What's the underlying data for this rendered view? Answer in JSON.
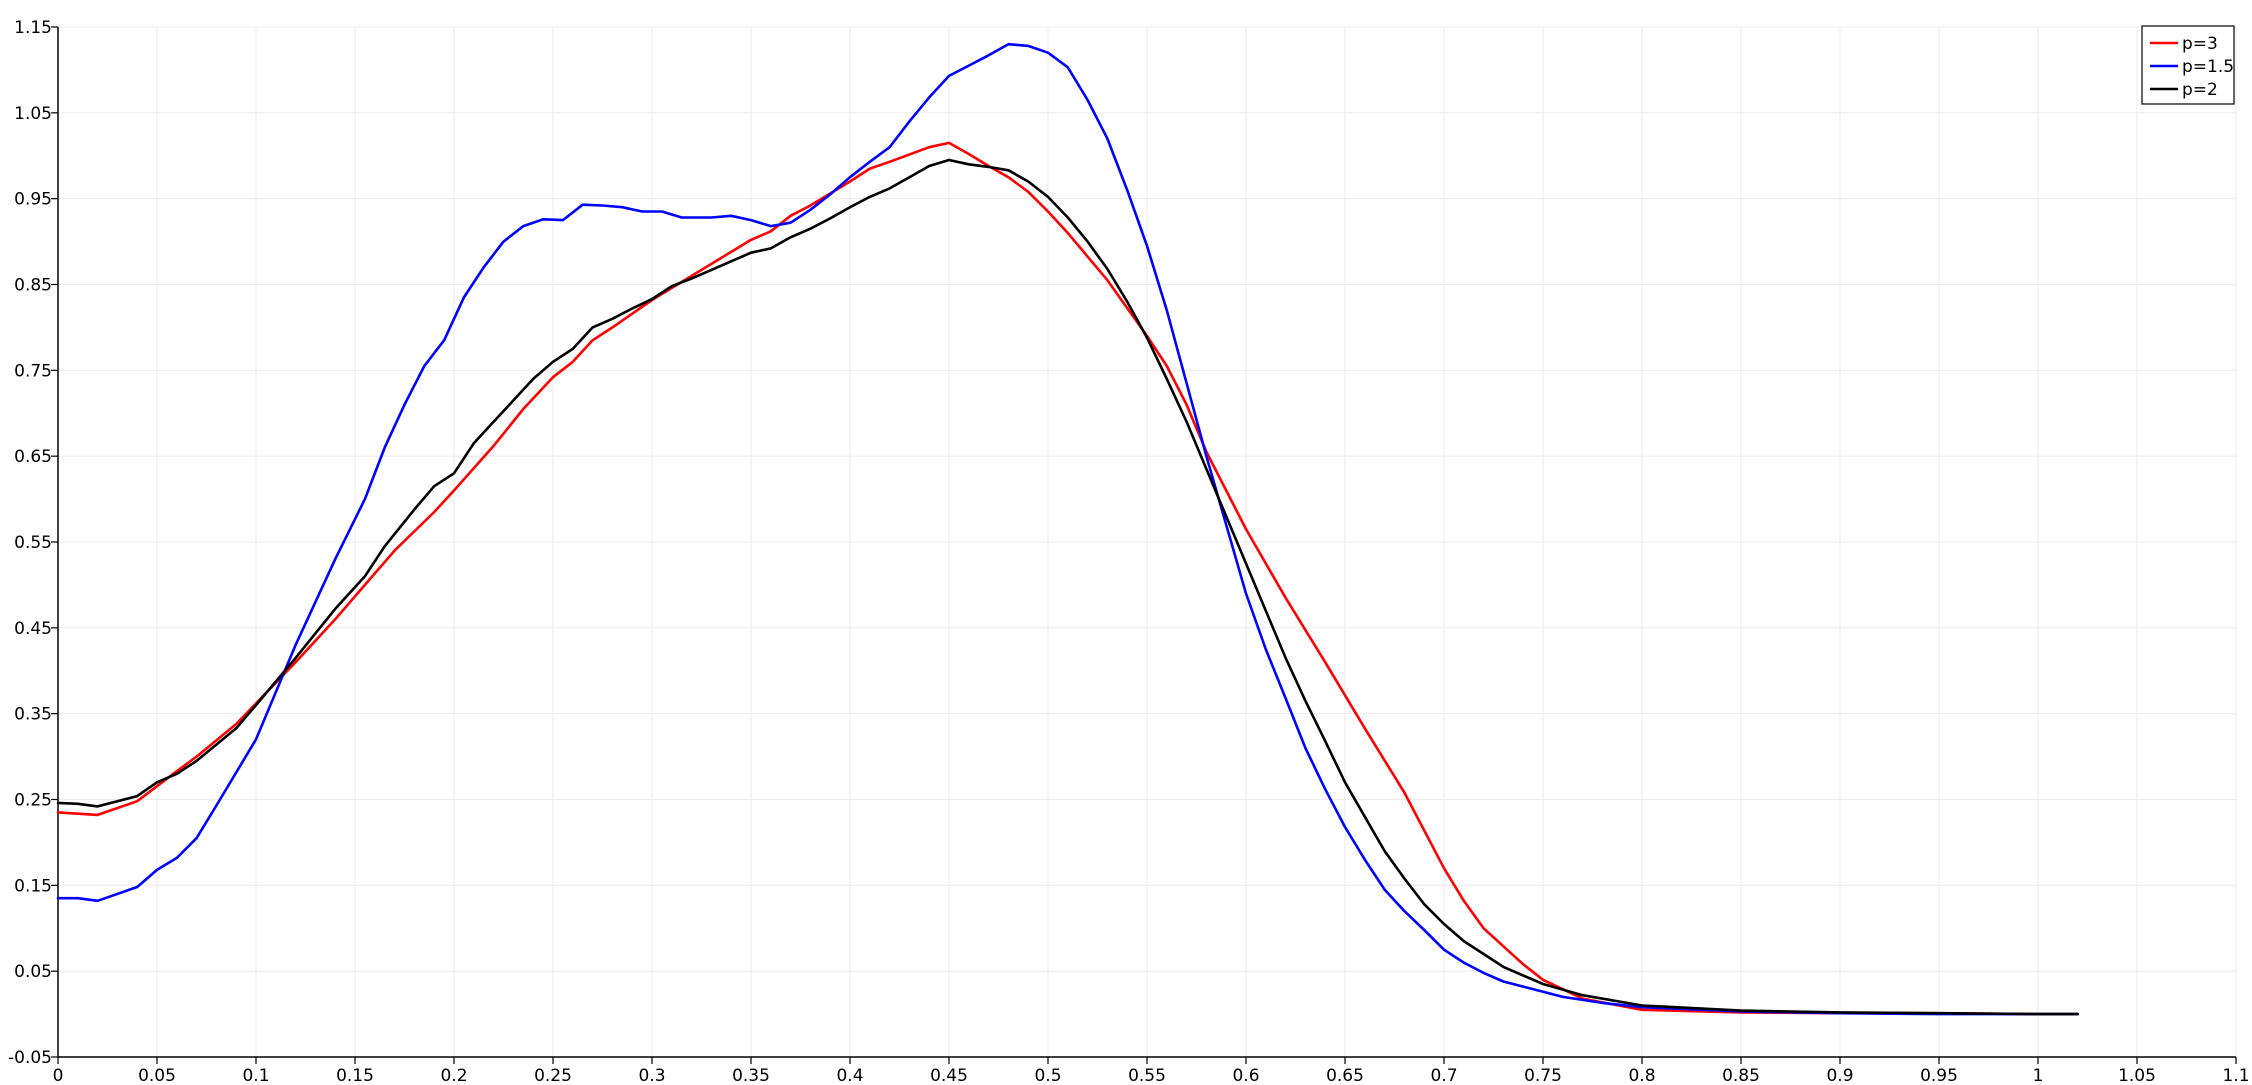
{
  "chart_data": {
    "type": "line",
    "title": "",
    "xlabel": "",
    "ylabel": "",
    "xlim": [
      0,
      1.1
    ],
    "ylim": [
      -0.05,
      1.15
    ],
    "grid": true,
    "legend_position": "top-right",
    "x_ticks": [
      "0",
      "0.05",
      "0.1",
      "0.15",
      "0.2",
      "0.25",
      "0.3",
      "0.35",
      "0.4",
      "0.45",
      "0.5",
      "0.55",
      "0.6",
      "0.65",
      "0.7",
      "0.75",
      "0.8",
      "0.85",
      "0.9",
      "0.95",
      "1",
      "1.05",
      "1.1"
    ],
    "y_ticks": [
      "-0.05",
      "0.05",
      "0.15",
      "0.25",
      "0.35",
      "0.45",
      "0.55",
      "0.65",
      "0.75",
      "0.85",
      "0.95",
      "1.05",
      "1.15"
    ],
    "series": [
      {
        "name": "p=3",
        "color": "#ff0000",
        "points": [
          [
            0,
            0.235
          ],
          [
            0.02,
            0.232
          ],
          [
            0.04,
            0.248
          ],
          [
            0.06,
            0.283
          ],
          [
            0.07,
            0.3
          ],
          [
            0.09,
            0.338
          ],
          [
            0.1,
            0.362
          ],
          [
            0.12,
            0.41
          ],
          [
            0.14,
            0.46
          ],
          [
            0.155,
            0.5
          ],
          [
            0.17,
            0.54
          ],
          [
            0.19,
            0.585
          ],
          [
            0.2,
            0.61
          ],
          [
            0.22,
            0.662
          ],
          [
            0.235,
            0.705
          ],
          [
            0.25,
            0.742
          ],
          [
            0.26,
            0.76
          ],
          [
            0.27,
            0.785
          ],
          [
            0.28,
            0.8
          ],
          [
            0.3,
            0.832
          ],
          [
            0.32,
            0.86
          ],
          [
            0.34,
            0.888
          ],
          [
            0.35,
            0.902
          ],
          [
            0.36,
            0.912
          ],
          [
            0.37,
            0.93
          ],
          [
            0.38,
            0.942
          ],
          [
            0.4,
            0.97
          ],
          [
            0.41,
            0.985
          ],
          [
            0.42,
            0.993
          ],
          [
            0.44,
            1.01
          ],
          [
            0.45,
            1.015
          ],
          [
            0.46,
            1.002
          ],
          [
            0.47,
            0.988
          ],
          [
            0.48,
            0.975
          ],
          [
            0.49,
            0.958
          ],
          [
            0.5,
            0.935
          ],
          [
            0.51,
            0.91
          ],
          [
            0.53,
            0.855
          ],
          [
            0.55,
            0.79
          ],
          [
            0.56,
            0.755
          ],
          [
            0.57,
            0.71
          ],
          [
            0.58,
            0.655
          ],
          [
            0.6,
            0.565
          ],
          [
            0.62,
            0.485
          ],
          [
            0.64,
            0.41
          ],
          [
            0.66,
            0.333
          ],
          [
            0.68,
            0.258
          ],
          [
            0.7,
            0.17
          ],
          [
            0.71,
            0.132
          ],
          [
            0.72,
            0.1
          ],
          [
            0.74,
            0.058
          ],
          [
            0.75,
            0.04
          ],
          [
            0.77,
            0.018
          ],
          [
            0.8,
            0.005
          ],
          [
            0.85,
            0.002
          ],
          [
            0.9,
            0.001
          ],
          [
            0.95,
            0.001
          ],
          [
            1.0,
            0.0
          ],
          [
            1.02,
            0.0
          ]
        ]
      },
      {
        "name": "p=1.5",
        "color": "#0000ff",
        "points": [
          [
            0,
            0.135
          ],
          [
            0.01,
            0.135
          ],
          [
            0.02,
            0.132
          ],
          [
            0.04,
            0.148
          ],
          [
            0.05,
            0.168
          ],
          [
            0.06,
            0.182
          ],
          [
            0.07,
            0.205
          ],
          [
            0.08,
            0.243
          ],
          [
            0.1,
            0.32
          ],
          [
            0.12,
            0.43
          ],
          [
            0.14,
            0.53
          ],
          [
            0.155,
            0.6
          ],
          [
            0.165,
            0.66
          ],
          [
            0.175,
            0.71
          ],
          [
            0.185,
            0.755
          ],
          [
            0.195,
            0.785
          ],
          [
            0.205,
            0.835
          ],
          [
            0.215,
            0.87
          ],
          [
            0.225,
            0.9
          ],
          [
            0.235,
            0.918
          ],
          [
            0.245,
            0.926
          ],
          [
            0.255,
            0.925
          ],
          [
            0.265,
            0.943
          ],
          [
            0.275,
            0.942
          ],
          [
            0.285,
            0.94
          ],
          [
            0.295,
            0.935
          ],
          [
            0.305,
            0.935
          ],
          [
            0.315,
            0.928
          ],
          [
            0.33,
            0.928
          ],
          [
            0.34,
            0.93
          ],
          [
            0.35,
            0.925
          ],
          [
            0.36,
            0.918
          ],
          [
            0.37,
            0.922
          ],
          [
            0.38,
            0.937
          ],
          [
            0.39,
            0.955
          ],
          [
            0.4,
            0.975
          ],
          [
            0.41,
            0.993
          ],
          [
            0.42,
            1.01
          ],
          [
            0.43,
            1.04
          ],
          [
            0.44,
            1.068
          ],
          [
            0.45,
            1.093
          ],
          [
            0.46,
            1.105
          ],
          [
            0.47,
            1.117
          ],
          [
            0.48,
            1.13
          ],
          [
            0.49,
            1.128
          ],
          [
            0.5,
            1.12
          ],
          [
            0.51,
            1.103
          ],
          [
            0.52,
            1.065
          ],
          [
            0.53,
            1.02
          ],
          [
            0.54,
            0.96
          ],
          [
            0.55,
            0.895
          ],
          [
            0.56,
            0.82
          ],
          [
            0.57,
            0.735
          ],
          [
            0.58,
            0.65
          ],
          [
            0.59,
            0.57
          ],
          [
            0.6,
            0.49
          ],
          [
            0.61,
            0.425
          ],
          [
            0.62,
            0.368
          ],
          [
            0.63,
            0.31
          ],
          [
            0.64,
            0.262
          ],
          [
            0.65,
            0.218
          ],
          [
            0.66,
            0.18
          ],
          [
            0.67,
            0.145
          ],
          [
            0.68,
            0.12
          ],
          [
            0.69,
            0.098
          ],
          [
            0.7,
            0.075
          ],
          [
            0.71,
            0.06
          ],
          [
            0.72,
            0.048
          ],
          [
            0.73,
            0.038
          ],
          [
            0.74,
            0.032
          ],
          [
            0.76,
            0.02
          ],
          [
            0.78,
            0.013
          ],
          [
            0.8,
            0.008
          ],
          [
            0.85,
            0.003
          ],
          [
            0.9,
            0.001
          ],
          [
            0.95,
            0.0
          ],
          [
            1.0,
            0.0
          ],
          [
            1.02,
            0.0
          ]
        ]
      },
      {
        "name": "p=2",
        "color": "#000000",
        "points": [
          [
            0,
            0.246
          ],
          [
            0.01,
            0.245
          ],
          [
            0.02,
            0.242
          ],
          [
            0.04,
            0.254
          ],
          [
            0.05,
            0.27
          ],
          [
            0.06,
            0.28
          ],
          [
            0.07,
            0.295
          ],
          [
            0.09,
            0.333
          ],
          [
            0.1,
            0.36
          ],
          [
            0.12,
            0.415
          ],
          [
            0.14,
            0.472
          ],
          [
            0.155,
            0.51
          ],
          [
            0.165,
            0.545
          ],
          [
            0.18,
            0.588
          ],
          [
            0.19,
            0.615
          ],
          [
            0.2,
            0.63
          ],
          [
            0.21,
            0.665
          ],
          [
            0.22,
            0.69
          ],
          [
            0.23,
            0.715
          ],
          [
            0.24,
            0.74
          ],
          [
            0.25,
            0.76
          ],
          [
            0.26,
            0.775
          ],
          [
            0.27,
            0.8
          ],
          [
            0.28,
            0.81
          ],
          [
            0.29,
            0.822
          ],
          [
            0.3,
            0.833
          ],
          [
            0.31,
            0.848
          ],
          [
            0.32,
            0.857
          ],
          [
            0.33,
            0.867
          ],
          [
            0.34,
            0.877
          ],
          [
            0.35,
            0.887
          ],
          [
            0.36,
            0.892
          ],
          [
            0.37,
            0.905
          ],
          [
            0.38,
            0.915
          ],
          [
            0.39,
            0.927
          ],
          [
            0.4,
            0.94
          ],
          [
            0.41,
            0.952
          ],
          [
            0.42,
            0.962
          ],
          [
            0.43,
            0.975
          ],
          [
            0.44,
            0.988
          ],
          [
            0.45,
            0.995
          ],
          [
            0.46,
            0.99
          ],
          [
            0.47,
            0.987
          ],
          [
            0.48,
            0.983
          ],
          [
            0.49,
            0.97
          ],
          [
            0.5,
            0.952
          ],
          [
            0.51,
            0.928
          ],
          [
            0.52,
            0.9
          ],
          [
            0.53,
            0.868
          ],
          [
            0.54,
            0.83
          ],
          [
            0.55,
            0.788
          ],
          [
            0.56,
            0.74
          ],
          [
            0.57,
            0.69
          ],
          [
            0.58,
            0.635
          ],
          [
            0.59,
            0.58
          ],
          [
            0.6,
            0.525
          ],
          [
            0.61,
            0.47
          ],
          [
            0.62,
            0.415
          ],
          [
            0.63,
            0.365
          ],
          [
            0.64,
            0.318
          ],
          [
            0.65,
            0.27
          ],
          [
            0.66,
            0.23
          ],
          [
            0.67,
            0.19
          ],
          [
            0.68,
            0.158
          ],
          [
            0.69,
            0.128
          ],
          [
            0.7,
            0.105
          ],
          [
            0.71,
            0.085
          ],
          [
            0.72,
            0.07
          ],
          [
            0.73,
            0.055
          ],
          [
            0.74,
            0.045
          ],
          [
            0.75,
            0.035
          ],
          [
            0.77,
            0.022
          ],
          [
            0.8,
            0.01
          ],
          [
            0.85,
            0.004
          ],
          [
            0.9,
            0.002
          ],
          [
            0.95,
            0.001
          ],
          [
            1.0,
            0.0
          ],
          [
            1.02,
            0.0
          ]
        ]
      }
    ]
  }
}
